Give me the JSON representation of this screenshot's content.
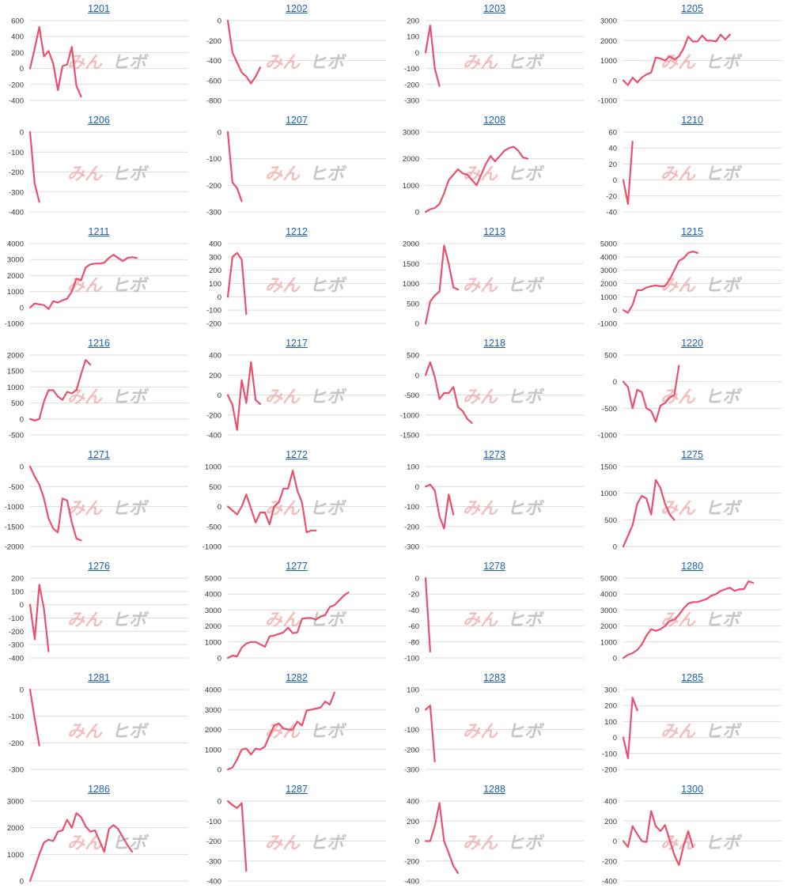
{
  "watermark": {
    "part1": "みん",
    "part2": "ヒボ"
  },
  "colors": {
    "line": "#e8506e",
    "grid": "#dcdcdc",
    "link": "#1a5fb4"
  },
  "chart_data": [
    {
      "type": "line",
      "title": "1201",
      "yticks": [
        600,
        400,
        200,
        0,
        -200,
        -400
      ],
      "ylim": [
        -400,
        600
      ],
      "values": [
        0,
        250,
        520,
        150,
        220,
        60,
        -270,
        30,
        50,
        270,
        -220,
        -350
      ]
    },
    {
      "type": "line",
      "title": "1202",
      "yticks": [
        0,
        -200,
        -400,
        -600,
        -800
      ],
      "ylim": [
        -800,
        0
      ],
      "values": [
        0,
        -320,
        -420,
        -520,
        -560,
        -630,
        -560,
        -470
      ]
    },
    {
      "type": "line",
      "title": "1203",
      "yticks": [
        200,
        100,
        0,
        -100,
        -200,
        -300
      ],
      "ylim": [
        -300,
        200
      ],
      "values": [
        0,
        170,
        -100,
        -210
      ]
    },
    {
      "type": "line",
      "title": "1205",
      "yticks": [
        3000,
        2000,
        1000,
        0,
        -1000
      ],
      "ylim": [
        -1000,
        3000
      ],
      "values": [
        0,
        -230,
        150,
        -100,
        150,
        300,
        400,
        1150,
        1100,
        1000,
        1200,
        1050,
        1200,
        1600,
        2200,
        1950,
        1950,
        2250,
        2000,
        2000,
        1950,
        2300,
        2050,
        2300
      ]
    },
    {
      "type": "line",
      "title": "1206",
      "yticks": [
        0,
        -100,
        -200,
        -300,
        -400
      ],
      "ylim": [
        -400,
        0
      ],
      "values": [
        0,
        -260,
        -350
      ]
    },
    {
      "type": "line",
      "title": "1207",
      "yticks": [
        0,
        -100,
        -200,
        -300
      ],
      "ylim": [
        -300,
        0
      ],
      "values": [
        0,
        -190,
        -210,
        -260
      ]
    },
    {
      "type": "line",
      "title": "1208",
      "yticks": [
        3000,
        2000,
        1000,
        0
      ],
      "ylim": [
        0,
        3000
      ],
      "values": [
        0,
        100,
        150,
        300,
        700,
        1200,
        1400,
        1600,
        1450,
        1400,
        1200,
        1000,
        1400,
        1800,
        2100,
        1900,
        2100,
        2300,
        2400,
        2450,
        2300,
        2050,
        2000
      ]
    },
    {
      "type": "line",
      "title": "1210",
      "yticks": [
        60,
        40,
        20,
        0,
        -20,
        -40
      ],
      "ylim": [
        -40,
        60
      ],
      "values": [
        0,
        -30,
        48
      ]
    },
    {
      "type": "line",
      "title": "1211",
      "yticks": [
        4000,
        3000,
        2000,
        1000,
        0,
        -1000
      ],
      "ylim": [
        -1000,
        4000
      ],
      "values": [
        0,
        250,
        200,
        150,
        -100,
        400,
        300,
        450,
        550,
        1000,
        1800,
        1700,
        2500,
        2700,
        2750,
        2750,
        2800,
        3100,
        3300,
        3100,
        2900,
        3100,
        3150,
        3100
      ]
    },
    {
      "type": "line",
      "title": "1212",
      "yticks": [
        400,
        300,
        200,
        100,
        0,
        -100,
        -200
      ],
      "ylim": [
        -200,
        400
      ],
      "values": [
        0,
        300,
        330,
        280,
        -130
      ]
    },
    {
      "type": "line",
      "title": "1213",
      "yticks": [
        2000,
        1500,
        1000,
        500,
        0
      ],
      "ylim": [
        0,
        2000
      ],
      "values": [
        0,
        550,
        700,
        800,
        1950,
        1500,
        900,
        850
      ]
    },
    {
      "type": "line",
      "title": "1215",
      "yticks": [
        5000,
        4000,
        3000,
        2000,
        1000,
        0,
        -1000
      ],
      "ylim": [
        -1000,
        5000
      ],
      "values": [
        0,
        -200,
        400,
        1500,
        1500,
        1700,
        1800,
        1850,
        1800,
        1800,
        2300,
        3000,
        3700,
        3900,
        4300,
        4400,
        4300
      ]
    },
    {
      "type": "line",
      "title": "1216",
      "yticks": [
        2000,
        1500,
        1000,
        500,
        0,
        -500
      ],
      "ylim": [
        -500,
        2000
      ],
      "values": [
        0,
        -50,
        0,
        550,
        900,
        900,
        700,
        600,
        850,
        800,
        900,
        1400,
        1850,
        1700
      ]
    },
    {
      "type": "line",
      "title": "1217",
      "yticks": [
        400,
        200,
        0,
        -200,
        -400
      ],
      "ylim": [
        -400,
        400
      ],
      "values": [
        0,
        -100,
        -350,
        150,
        -80,
        330,
        -50,
        -90
      ]
    },
    {
      "type": "line",
      "title": "1218",
      "yticks": [
        500,
        0,
        -500,
        -1000,
        -1500
      ],
      "ylim": [
        -1500,
        500
      ],
      "values": [
        0,
        320,
        -50,
        -600,
        -450,
        -450,
        -300,
        -800,
        -900,
        -1100,
        -1200
      ]
    },
    {
      "type": "line",
      "title": "1220",
      "yticks": [
        500,
        0,
        -500,
        -1000
      ],
      "ylim": [
        -1000,
        500
      ],
      "values": [
        0,
        -100,
        -500,
        -150,
        -200,
        -500,
        -550,
        -750,
        -450,
        -400,
        -300,
        -250,
        300
      ]
    },
    {
      "type": "line",
      "title": "1271",
      "yticks": [
        0,
        -500,
        -1000,
        -1500,
        -2000
      ],
      "ylim": [
        -2000,
        0
      ],
      "values": [
        0,
        -250,
        -450,
        -800,
        -1300,
        -1550,
        -1650,
        -800,
        -850,
        -1400,
        -1800,
        -1850
      ]
    },
    {
      "type": "line",
      "title": "1272",
      "yticks": [
        1000,
        500,
        0,
        -500,
        -1000
      ],
      "ylim": [
        -1000,
        1000
      ],
      "values": [
        0,
        -100,
        -200,
        0,
        300,
        -50,
        -400,
        -150,
        -150,
        -450,
        0,
        100,
        450,
        450,
        900,
        400,
        100,
        -650,
        -600,
        -600
      ]
    },
    {
      "type": "line",
      "title": "1273",
      "yticks": [
        100,
        0,
        -100,
        -200,
        -300
      ],
      "ylim": [
        -300,
        100
      ],
      "values": [
        0,
        10,
        -20,
        -150,
        -210,
        -40,
        -140
      ]
    },
    {
      "type": "line",
      "title": "1275",
      "yticks": [
        1500,
        1000,
        500,
        0
      ],
      "ylim": [
        0,
        1500
      ],
      "values": [
        0,
        200,
        400,
        800,
        950,
        900,
        600,
        1250,
        1100,
        800,
        600,
        500
      ]
    },
    {
      "type": "line",
      "title": "1276",
      "yticks": [
        200,
        100,
        0,
        -100,
        -200,
        -300,
        -400
      ],
      "ylim": [
        -400,
        200
      ],
      "values": [
        0,
        -260,
        150,
        -30,
        -350
      ]
    },
    {
      "type": "line",
      "title": "1277",
      "yticks": [
        5000,
        4000,
        3000,
        2000,
        1000,
        0
      ],
      "ylim": [
        0,
        5000
      ],
      "values": [
        0,
        150,
        100,
        650,
        900,
        1000,
        1000,
        850,
        700,
        1350,
        1400,
        1500,
        1600,
        1900,
        1550,
        1600,
        2450,
        2500,
        2500,
        2400,
        2600,
        2700,
        3200,
        3300,
        3600,
        3900,
        4100
      ]
    },
    {
      "type": "line",
      "title": "1278",
      "yticks": [
        0,
        -20,
        -40,
        -60,
        -80,
        -100
      ],
      "ylim": [
        -100,
        0
      ],
      "values": [
        0,
        -92
      ]
    },
    {
      "type": "line",
      "title": "1280",
      "yticks": [
        5000,
        4000,
        3000,
        2000,
        1000,
        0
      ],
      "ylim": [
        0,
        5000
      ],
      "values": [
        0,
        200,
        300,
        500,
        850,
        1400,
        1800,
        1700,
        1800,
        2000,
        2300,
        2400,
        2700,
        3100,
        3400,
        3500,
        3500,
        3600,
        3700,
        3900,
        4000,
        4200,
        4300,
        4400,
        4200,
        4300,
        4300,
        4800,
        4700
      ]
    },
    {
      "type": "line",
      "title": "1281",
      "yticks": [
        0,
        -100,
        -200,
        -300
      ],
      "ylim": [
        -300,
        0
      ],
      "values": [
        0,
        -110,
        -210
      ]
    },
    {
      "type": "line",
      "title": "1282",
      "yticks": [
        4000,
        3000,
        2000,
        1000,
        0
      ],
      "ylim": [
        0,
        4000
      ],
      "values": [
        0,
        100,
        500,
        1000,
        1050,
        750,
        1050,
        1000,
        1150,
        1700,
        2200,
        2300,
        2050,
        2000,
        2000,
        2400,
        2200,
        2950,
        3000,
        3050,
        3100,
        3400,
        3250,
        3850
      ]
    },
    {
      "type": "line",
      "title": "1283",
      "yticks": [
        100,
        0,
        -100,
        -200,
        -300
      ],
      "ylim": [
        -300,
        100
      ],
      "values": [
        0,
        20,
        -260
      ]
    },
    {
      "type": "line",
      "title": "1285",
      "yticks": [
        300,
        200,
        100,
        0,
        -100,
        -200
      ],
      "ylim": [
        -200,
        300
      ],
      "values": [
        0,
        -130,
        250,
        170
      ]
    },
    {
      "type": "line",
      "title": "1286",
      "yticks": [
        3000,
        2000,
        1000,
        0
      ],
      "ylim": [
        0,
        3000
      ],
      "values": [
        0,
        500,
        1000,
        1450,
        1550,
        1500,
        1850,
        1900,
        2300,
        2000,
        2550,
        2400,
        2050,
        1850,
        1900,
        1500,
        1100,
        1950,
        2100,
        1950,
        1650,
        1350,
        1100
      ]
    },
    {
      "type": "line",
      "title": "1287",
      "yticks": [
        0,
        -100,
        -200,
        -300,
        -400
      ],
      "ylim": [
        -400,
        0
      ],
      "values": [
        0,
        -20,
        -35,
        -10,
        -350
      ]
    },
    {
      "type": "line",
      "title": "1288",
      "yticks": [
        400,
        200,
        0,
        -200,
        -400
      ],
      "ylim": [
        -400,
        400
      ],
      "values": [
        0,
        0,
        150,
        380,
        0,
        -120,
        -250,
        -320
      ]
    },
    {
      "type": "line",
      "title": "1300",
      "yticks": [
        400,
        200,
        0,
        -200,
        -400
      ],
      "ylim": [
        -400,
        400
      ],
      "values": [
        0,
        -60,
        150,
        70,
        0,
        -10,
        300,
        150,
        100,
        160,
        10,
        -140,
        -240,
        -50,
        100,
        -60
      ]
    }
  ]
}
